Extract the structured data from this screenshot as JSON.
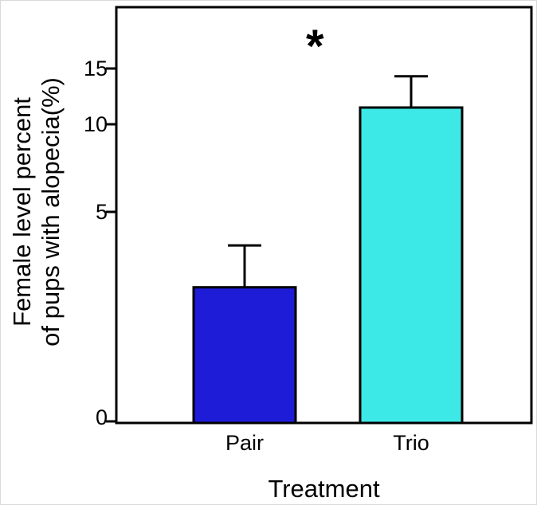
{
  "figure": {
    "ylabel_line1": "Female level percent",
    "ylabel_line2": "of pups with alopecia(%)",
    "xlabel": "Treatment",
    "annotation": "*"
  },
  "chart_data": {
    "type": "bar",
    "title": "",
    "xlabel": "Treatment",
    "ylabel": "Female level percent of pups with alopecia(%)",
    "categories": [
      "Pair",
      "Trio"
    ],
    "values": [
      3.2,
      11.5
    ],
    "errors_plus": [
      1.0,
      2.8
    ],
    "bar_colors": [
      "#1f1cd8",
      "#3de9e6"
    ],
    "bar_edge_color": "#000000",
    "yticks": [
      0,
      5,
      10,
      15
    ],
    "ylim": [
      0,
      18
    ],
    "grid": false,
    "legend": "none",
    "annotations": [
      {
        "text": "*",
        "position": "above-left of Trio bar"
      }
    ]
  }
}
